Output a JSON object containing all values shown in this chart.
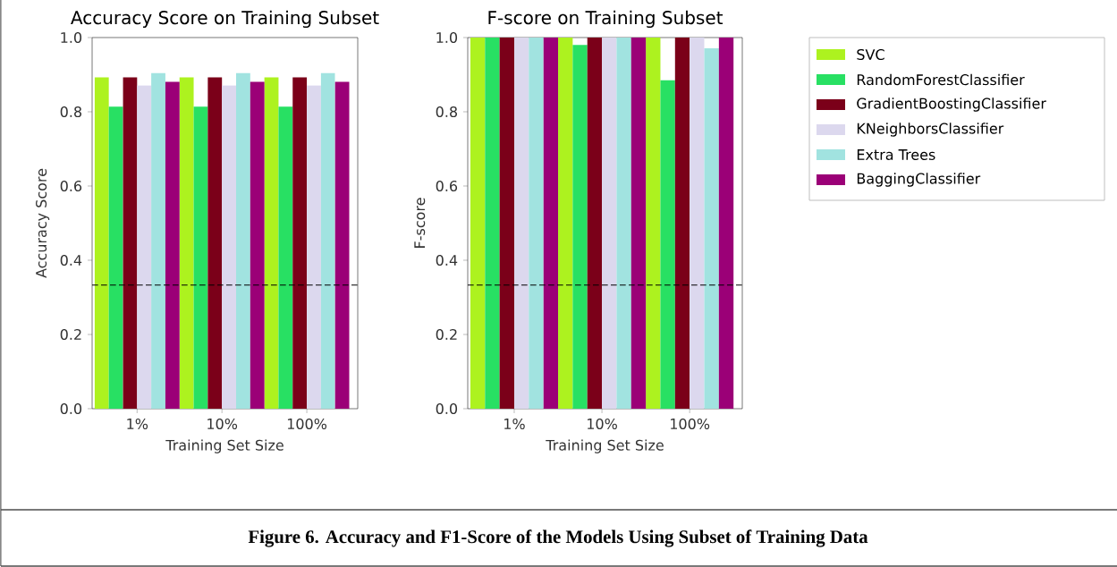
{
  "chart_data": [
    {
      "type": "bar",
      "title": "Accuracy Score on Training Subset",
      "xlabel": "Training Set Size",
      "ylabel": "Accuracy Score",
      "categories": [
        "1%",
        "10%",
        "100%"
      ],
      "series": [
        {
          "color": "#adf21f",
          "values": [
            0.893,
            0.893,
            0.893
          ]
        },
        {
          "color": "#28e063",
          "values": [
            0.814,
            0.814,
            0.814
          ]
        },
        {
          "color": "#7b0019",
          "values": [
            0.893,
            0.893,
            0.893
          ]
        },
        {
          "color": "#dcd8ee",
          "values": [
            0.871,
            0.871,
            0.871
          ]
        },
        {
          "color": "#a1e3e0",
          "values": [
            0.904,
            0.904,
            0.904
          ]
        },
        {
          "color": "#9b0077",
          "values": [
            0.881,
            0.881,
            0.881
          ]
        }
      ],
      "ylim": [
        0,
        1
      ],
      "yticks": [
        {
          "value": 0,
          "label": "0.0"
        },
        {
          "value": 0.2,
          "label": "0.2"
        },
        {
          "value": 0.4,
          "label": "0.4"
        },
        {
          "value": 0.6,
          "label": "0.6"
        },
        {
          "value": 0.8,
          "label": "0.8"
        },
        {
          "value": 1,
          "label": "1.0"
        }
      ],
      "ref_lines": [
        {
          "axis": "y",
          "value": 0.333,
          "color": "#000000",
          "line_style": "dashed"
        }
      ],
      "annotations": [
        "Figure 6.  Accuracy and F1-Score of the Models Using Subset of Training Data"
      ]
    },
    {
      "type": "bar",
      "title": "F-score on Training Subset",
      "xlabel": "Training Set Size",
      "ylabel": "F-score",
      "categories": [
        "1%",
        "10%",
        "100%"
      ],
      "series": [
        {
          "name": "SVC",
          "color": "#adf21f",
          "values": [
            1,
            1,
            1
          ]
        },
        {
          "name": "RandomForestClassifier",
          "color": "#28e063",
          "values": [
            1,
            0.98,
            0.885
          ]
        },
        {
          "name": "GradientBoostingClassifier",
          "color": "#7b0019",
          "values": [
            1,
            1,
            1
          ]
        },
        {
          "name": "KNeighborsClassifier",
          "color": "#dcd8ee",
          "values": [
            1,
            1,
            1
          ]
        },
        {
          "name": "Extra Trees",
          "color": "#a1e3e0",
          "values": [
            1,
            1,
            0.971
          ]
        },
        {
          "name": "BaggingClassifier",
          "color": "#9b0077",
          "values": [
            1,
            1,
            1
          ]
        }
      ],
      "ylim": [
        0,
        1
      ],
      "yticks": [
        {
          "value": 0,
          "label": "0.0"
        },
        {
          "value": 0.2,
          "label": "0.2"
        },
        {
          "value": 0.4,
          "label": "0.4"
        },
        {
          "value": 0.6,
          "label": "0.6"
        },
        {
          "value": 0.8,
          "label": "0.8"
        },
        {
          "value": 1,
          "label": "1.0"
        }
      ],
      "ref_lines": [
        {
          "axis": "y",
          "value": 0.333,
          "color": "#000000",
          "line_style": "dashed"
        }
      ],
      "legend": "right"
    }
  ]
}
